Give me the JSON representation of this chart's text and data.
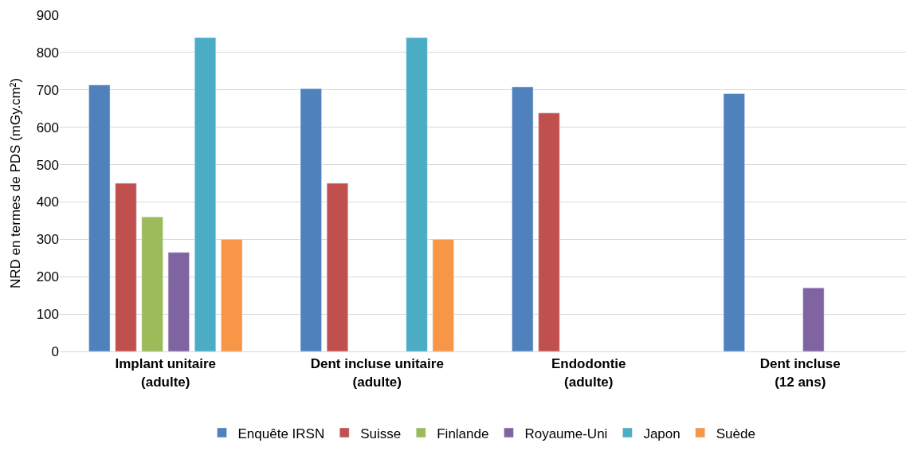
{
  "chart_data": {
    "type": "bar",
    "ylabel": "NRD en termes de PDS (mGy.cm²)",
    "categories": [
      "Implant unitaire\n(adulte)",
      "Dent incluse unitaire\n(adulte)",
      "Endodontie\n(adulte)",
      "Dent incluse\n(12 ans)"
    ],
    "series": [
      {
        "name": "Enquête IRSN",
        "color": "#4f81bd",
        "values": [
          713,
          703,
          708,
          690
        ]
      },
      {
        "name": "Suisse",
        "color": "#c0504d",
        "values": [
          450,
          450,
          638,
          null
        ]
      },
      {
        "name": "Finlande",
        "color": "#9bbb59",
        "values": [
          360,
          null,
          null,
          null
        ]
      },
      {
        "name": "Royaume-Uni",
        "color": "#8064a2",
        "values": [
          265,
          null,
          null,
          170
        ]
      },
      {
        "name": "Japon",
        "color": "#4bacc6",
        "values": [
          840,
          840,
          null,
          null
        ]
      },
      {
        "name": "Suède",
        "color": "#f79646",
        "values": [
          300,
          300,
          null,
          null
        ]
      }
    ],
    "ylim": [
      0,
      900
    ],
    "yticks": [
      0,
      100,
      200,
      300,
      400,
      500,
      600,
      700,
      800,
      900
    ],
    "grid": "y",
    "legend": "bottom"
  }
}
